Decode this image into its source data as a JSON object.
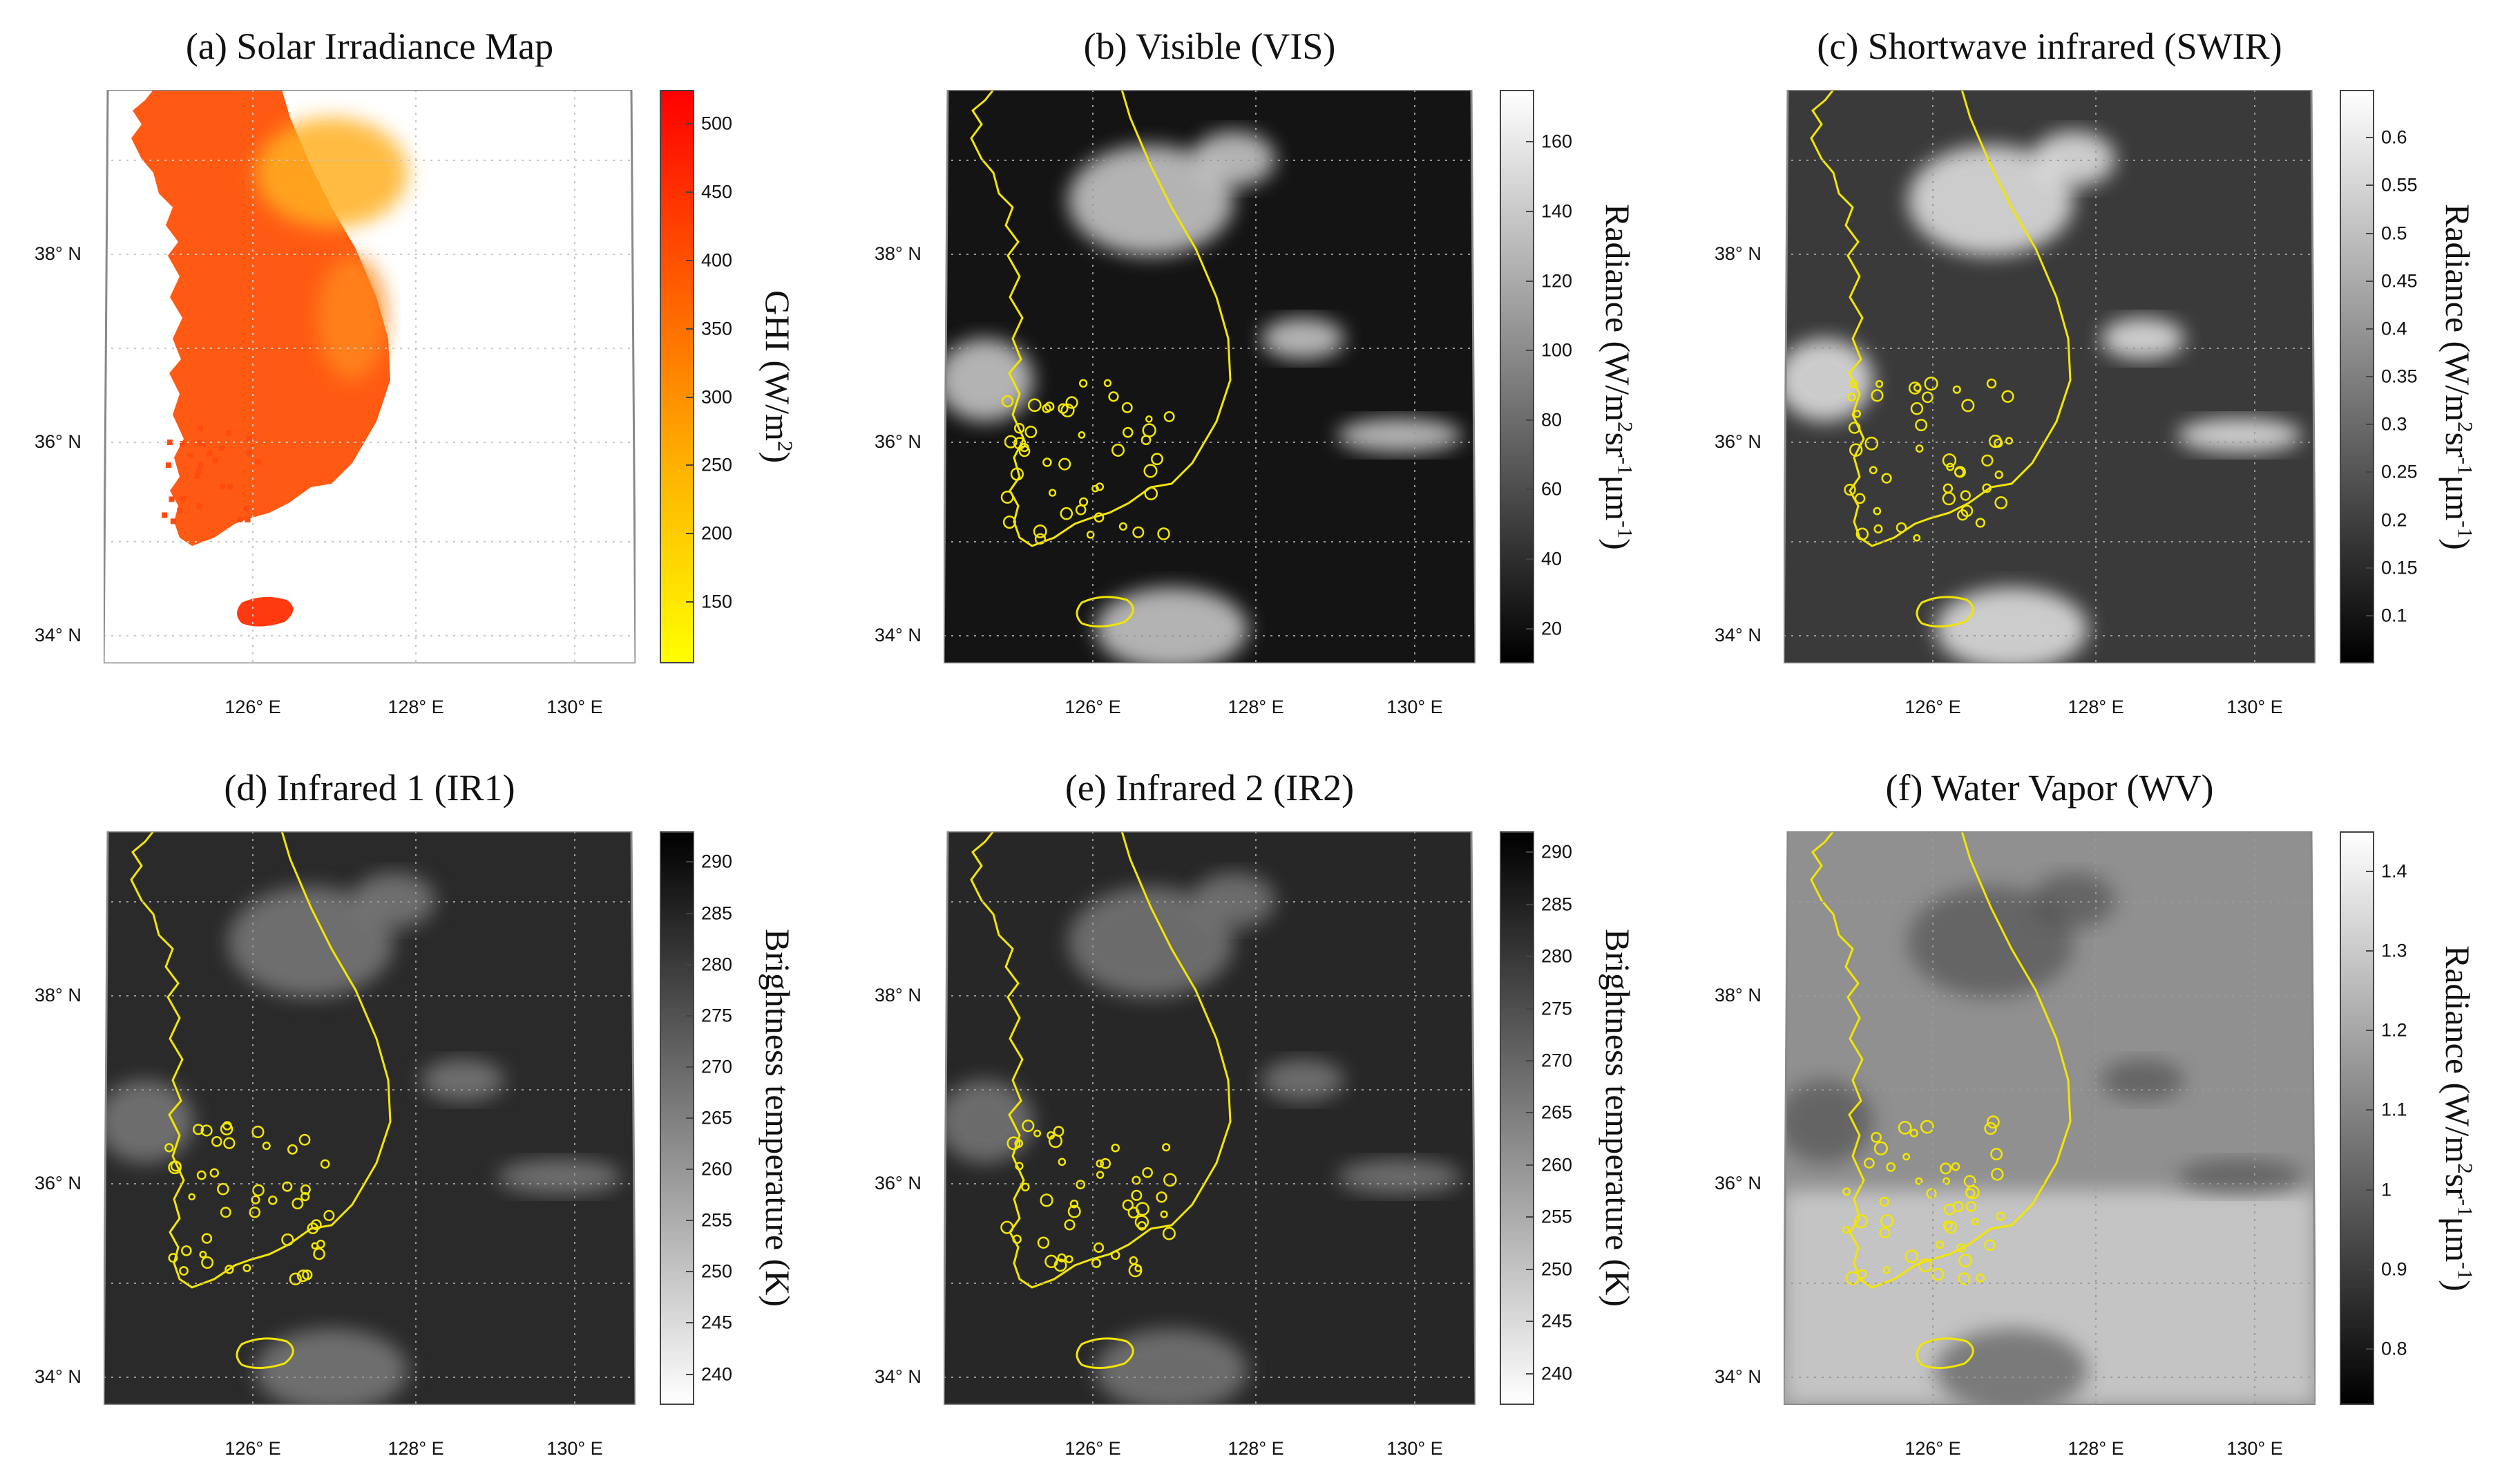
{
  "panels": [
    {
      "id": "a",
      "title": "(a) Solar Irradiance Map",
      "colorbar": {
        "palette": "yellow-red",
        "colors": [
          "#ffff00",
          "#ffb400",
          "#ff5a00",
          "#ff0000"
        ],
        "ticks": [
          "150",
          "200",
          "250",
          "300",
          "350",
          "400",
          "450",
          "500"
        ],
        "range": [
          105,
          525
        ],
        "label_parts": [
          "GHI (W/m",
          "2",
          ")"
        ]
      }
    },
    {
      "id": "b",
      "title": "(b) Visible (VIS)",
      "colorbar": {
        "palette": "grayscale",
        "colors": [
          "#000000",
          "#ffffff"
        ],
        "ticks": [
          "20",
          "40",
          "60",
          "80",
          "100",
          "120",
          "140",
          "160"
        ],
        "range": [
          10,
          175
        ],
        "label_parts": [
          "Radiance (W/m",
          "2",
          "sr",
          "-1",
          "μm",
          "-1",
          ")"
        ]
      }
    },
    {
      "id": "c",
      "title": "(c) Shortwave infrared (SWIR)",
      "colorbar": {
        "palette": "grayscale",
        "colors": [
          "#000000",
          "#ffffff"
        ],
        "ticks": [
          "0.1",
          "0.15",
          "0.2",
          "0.25",
          "0.3",
          "0.35",
          "0.4",
          "0.45",
          "0.5",
          "0.55",
          "0.6"
        ],
        "range": [
          0.05,
          0.65
        ],
        "label_parts": [
          "Radiance (W/m",
          "2",
          "sr",
          "-1",
          "μm",
          "-1",
          ")"
        ]
      }
    },
    {
      "id": "d",
      "title": "(d) Infrared 1 (IR1)",
      "colorbar": {
        "palette": "grayscale-reversed",
        "colors": [
          "#ffffff",
          "#000000"
        ],
        "ticks": [
          "240",
          "245",
          "250",
          "255",
          "260",
          "265",
          "270",
          "275",
          "280",
          "285",
          "290"
        ],
        "range": [
          237,
          293
        ],
        "label_parts": [
          "Brightness temperature (K)"
        ]
      }
    },
    {
      "id": "e",
      "title": "(e) Infrared 2 (IR2)",
      "colorbar": {
        "palette": "grayscale-reversed",
        "colors": [
          "#ffffff",
          "#000000"
        ],
        "ticks": [
          "240",
          "245",
          "250",
          "255",
          "260",
          "265",
          "270",
          "275",
          "280",
          "285",
          "290"
        ],
        "range": [
          237,
          292
        ],
        "label_parts": [
          "Brightness temperature (K)"
        ]
      }
    },
    {
      "id": "f",
      "title": "(f) Water Vapor (WV)",
      "colorbar": {
        "palette": "grayscale",
        "colors": [
          "#000000",
          "#ffffff"
        ],
        "ticks": [
          "0.8",
          "0.9",
          "1",
          "1.1",
          "1.2",
          "1.3",
          "1.4"
        ],
        "range": [
          0.73,
          1.45
        ],
        "label_parts": [
          "Radiance (W/m",
          "2",
          "sr",
          "-1",
          "μm",
          "-1",
          ")"
        ]
      }
    }
  ],
  "lat_labels": [
    "38° N",
    "36° N",
    "34° N"
  ],
  "lon_labels": [
    "126° E",
    "128° E",
    "130° E"
  ],
  "coastline_color": "#f2e600"
}
